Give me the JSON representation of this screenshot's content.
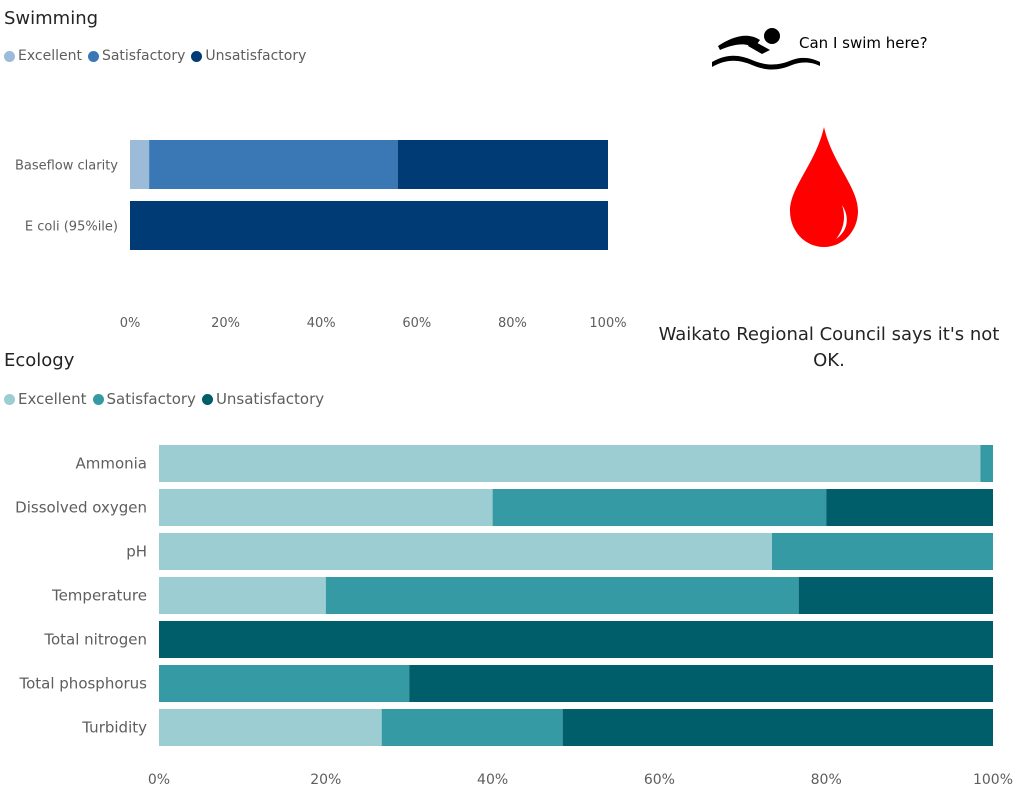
{
  "swimming": {
    "title": "Swimming",
    "legend": [
      "Excellent",
      "Satisfactory",
      "Unsatisfactory"
    ],
    "colors": [
      "#9bbbd9",
      "#3a78b5",
      "#003b76"
    ]
  },
  "ecology": {
    "title": "Ecology",
    "legend": [
      "Excellent",
      "Satisfactory",
      "Unsatisfactory"
    ],
    "colors": [
      "#9bcdd2",
      "#369aa4",
      "#005e6a"
    ]
  },
  "info": {
    "question": "Can I swim here?",
    "message": "Waikato Regional Council says it's not OK.",
    "drop_color": "#ff0000"
  },
  "chart_data": [
    {
      "type": "bar",
      "orientation": "horizontal",
      "stacked": "percent",
      "title": "Swimming",
      "categories": [
        "Baseflow clarity",
        "E coli (95%ile)"
      ],
      "series": [
        {
          "name": "Excellent",
          "values": [
            4,
            0
          ]
        },
        {
          "name": "Satisfactory",
          "values": [
            52,
            0
          ]
        },
        {
          "name": "Unsatisfactory",
          "values": [
            44,
            100
          ]
        }
      ],
      "xlim": [
        0,
        100
      ],
      "xticks": [
        "0%",
        "20%",
        "40%",
        "60%",
        "80%",
        "100%"
      ],
      "legend": "top-left",
      "grid": false
    },
    {
      "type": "bar",
      "orientation": "horizontal",
      "stacked": "percent",
      "title": "Ecology",
      "categories": [
        "Ammonia",
        "Dissolved oxygen",
        "pH",
        "Temperature",
        "Total nitrogen",
        "Total phosphorus",
        "Turbidity"
      ],
      "series": [
        {
          "name": "Excellent",
          "values": [
            98.5,
            40,
            73.5,
            20,
            0,
            0,
            26.7
          ]
        },
        {
          "name": "Satisfactory",
          "values": [
            1.5,
            40,
            26.5,
            56.7,
            0,
            30,
            21.7
          ]
        },
        {
          "name": "Unsatisfactory",
          "values": [
            0,
            20,
            0,
            23.3,
            100,
            70,
            51.6
          ]
        }
      ],
      "xlim": [
        0,
        100
      ],
      "xticks": [
        "0%",
        "20%",
        "40%",
        "60%",
        "80%",
        "100%"
      ],
      "legend": "top-left",
      "grid": false
    }
  ]
}
